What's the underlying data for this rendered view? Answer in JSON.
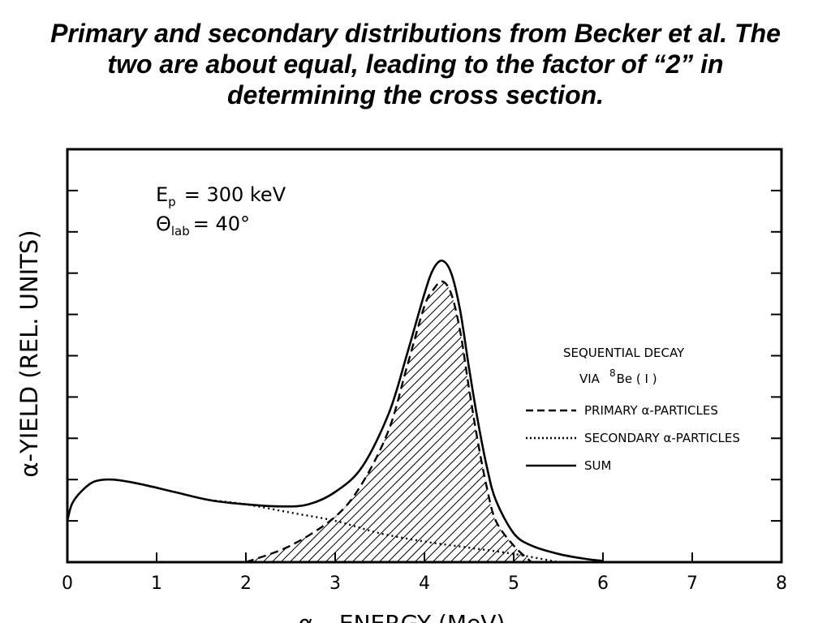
{
  "slide": {
    "title_lines": [
      "Primary and secondary distributions from Becker et al.  The",
      "two are about equal, leading to the factor of “2” in",
      "determining the cross section."
    ]
  },
  "chart_data": {
    "type": "line",
    "xlabel": "α – ENERGY   (MeV)",
    "ylabel": "α-YIELD  (REL. UNITS)",
    "xlim": [
      0,
      8
    ],
    "ylim": [
      0,
      1
    ],
    "xticks": [
      0,
      1,
      2,
      3,
      4,
      5,
      6,
      7,
      8
    ],
    "yticks_labeled": false,
    "annotation": {
      "energy_symbol": "E",
      "energy_sub": "p",
      "energy_value": "= 300 keV",
      "angle_symbol": "Θ",
      "angle_sub": "lab",
      "angle_value": "= 40°"
    },
    "legend": {
      "placement": "right",
      "heading_line1": "SEQUENTIAL  DECAY",
      "heading_line2_pre": "VIA",
      "heading_line2_sup": "8",
      "heading_line2_post": "Be ( I )",
      "entries": [
        "PRIMARY  α-PARTICLES",
        "SECONDARY α-PARTICLES",
        "SUM"
      ]
    },
    "series": [
      {
        "name": "PRIMARY  α-PARTICLES",
        "style": "dashed",
        "hatched": true,
        "x": [
          2.0,
          2.5,
          3.0,
          3.3,
          3.6,
          3.8,
          4.0,
          4.1,
          4.2,
          4.3,
          4.4,
          4.5,
          4.6,
          4.7,
          4.8,
          5.0,
          5.2
        ],
        "y": [
          0.0,
          0.04,
          0.11,
          0.19,
          0.32,
          0.47,
          0.62,
          0.66,
          0.68,
          0.65,
          0.56,
          0.42,
          0.29,
          0.18,
          0.1,
          0.04,
          0.0
        ]
      },
      {
        "name": "SECONDARY α-PARTICLES",
        "style": "dotted",
        "hatched": false,
        "x": [
          1.6,
          2.0,
          2.5,
          3.0,
          3.5,
          4.0,
          4.5,
          5.0,
          5.5
        ],
        "y": [
          0.15,
          0.14,
          0.12,
          0.1,
          0.07,
          0.05,
          0.035,
          0.02,
          0.0
        ]
      },
      {
        "name": "SUM",
        "style": "solid",
        "hatched": false,
        "x": [
          0.0,
          0.05,
          0.15,
          0.3,
          0.5,
          0.8,
          1.2,
          1.6,
          2.0,
          2.4,
          2.7,
          3.0,
          3.3,
          3.6,
          3.8,
          4.0,
          4.1,
          4.2,
          4.3,
          4.4,
          4.5,
          4.6,
          4.7,
          4.8,
          5.0,
          5.2,
          5.5,
          5.8,
          6.0
        ],
        "y": [
          0.1,
          0.14,
          0.17,
          0.195,
          0.2,
          0.19,
          0.17,
          0.15,
          0.14,
          0.135,
          0.14,
          0.17,
          0.23,
          0.36,
          0.5,
          0.65,
          0.71,
          0.73,
          0.7,
          0.61,
          0.47,
          0.34,
          0.23,
          0.15,
          0.07,
          0.04,
          0.02,
          0.008,
          0.003
        ]
      }
    ]
  }
}
